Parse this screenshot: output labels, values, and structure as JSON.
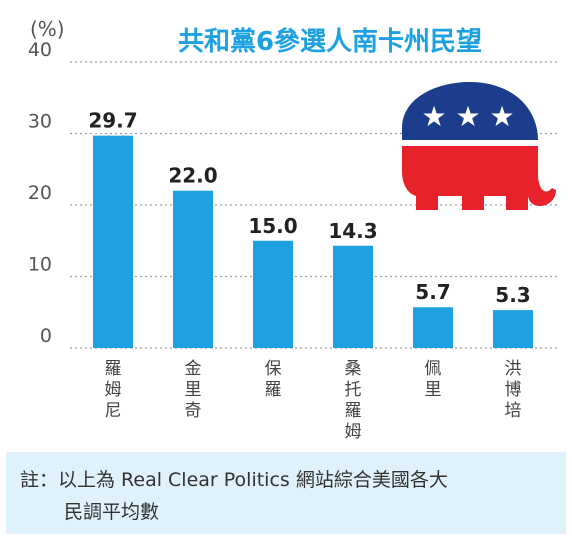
{
  "chart_data": {
    "type": "bar",
    "title": "共和黨6參選人南卡州民望",
    "ylabel": "(%)",
    "ylim": [
      0,
      40
    ],
    "yticks": [
      0,
      10,
      20,
      30,
      40
    ],
    "grid": true,
    "categories": [
      "羅姆尼",
      "金里奇",
      "保羅",
      "桑托羅姆",
      "佩里",
      "洪博培"
    ],
    "values": [
      29.7,
      22.0,
      15.0,
      14.3,
      5.7,
      5.3
    ],
    "value_labels": [
      "29.7",
      "22.0",
      "15.0",
      "14.3",
      "5.7",
      "5.3"
    ]
  },
  "colors": {
    "bar": "#1da1e2",
    "title": "#1da1e2",
    "grid": "#9aa0a6",
    "note_bg": "#dff1fb",
    "logo_blue": "#1c3c8c",
    "logo_red": "#e8222a"
  },
  "logo": {
    "icon": "republican-elephant-icon"
  },
  "note": {
    "line1": "註：以上為 Real Clear Politics 網站綜合美國各大",
    "line2": "民調平均數"
  }
}
